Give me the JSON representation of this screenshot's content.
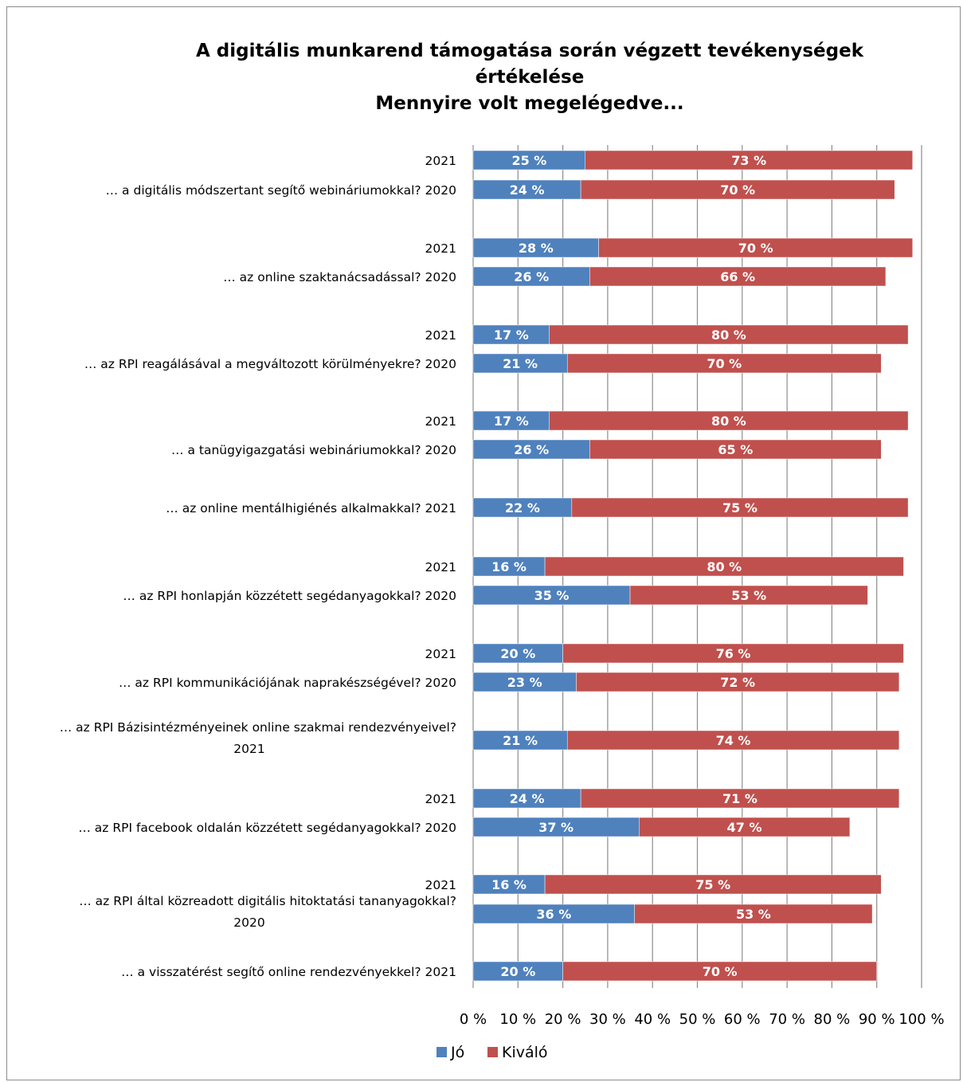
{
  "chart_data": {
    "type": "bar",
    "orientation": "horizontal",
    "stacked": true,
    "title_lines": [
      "A digitális munkarend támogatása során végzett tevékenységek",
      "értékelése",
      "Mennyire volt megelégedve..."
    ],
    "xlim": [
      0,
      100
    ],
    "x_ticks": [
      "0 %",
      "10 %",
      "20 %",
      "30 %",
      "40 %",
      "50 %",
      "60 %",
      "70 %",
      "80 %",
      "90 %",
      "100 %"
    ],
    "grid": true,
    "legend_position": "bottom",
    "series": [
      {
        "name": "Jó",
        "color": "#4f81bd"
      },
      {
        "name": "Kiváló",
        "color": "#c0504d"
      }
    ],
    "bars": [
      {
        "label": [
          "2021"
        ],
        "values": [
          25,
          73
        ],
        "value_labels": [
          "25 %",
          "73 %"
        ]
      },
      {
        "label": [
          "… a digitális módszertant segítő webináriumokkal? 2020"
        ],
        "values": [
          24,
          70
        ],
        "value_labels": [
          "24 %",
          "70 %"
        ]
      },
      {
        "label": [
          "2021"
        ],
        "values": [
          28,
          70
        ],
        "value_labels": [
          "28 %",
          "70 %"
        ]
      },
      {
        "label": [
          "… az online szaktanácsadással? 2020"
        ],
        "values": [
          26,
          66
        ],
        "value_labels": [
          "26 %",
          "66 %"
        ]
      },
      {
        "label": [
          "2021"
        ],
        "values": [
          17,
          80
        ],
        "value_labels": [
          "17 %",
          "80 %"
        ]
      },
      {
        "label": [
          "… az RPI reagálásával a megváltozott körülményekre? 2020"
        ],
        "values": [
          21,
          70
        ],
        "value_labels": [
          "21 %",
          "70 %"
        ]
      },
      {
        "label": [
          "2021"
        ],
        "values": [
          17,
          80
        ],
        "value_labels": [
          "17 %",
          "80 %"
        ]
      },
      {
        "label": [
          "… a tanügyigazgatási webináriumokkal? 2020"
        ],
        "values": [
          26,
          65
        ],
        "value_labels": [
          "26 %",
          "65 %"
        ]
      },
      {
        "label": [
          "… az online mentálhigiénés alkalmakkal? 2021"
        ],
        "values": [
          22,
          75
        ],
        "value_labels": [
          "22 %",
          "75 %"
        ]
      },
      {
        "label": [
          "2021"
        ],
        "values": [
          16,
          80
        ],
        "value_labels": [
          "16 %",
          "80 %"
        ]
      },
      {
        "label": [
          "… az RPI honlapján közzétett segédanyagokkal? 2020"
        ],
        "values": [
          35,
          53
        ],
        "value_labels": [
          "35 %",
          "53 %"
        ]
      },
      {
        "label": [
          "2021"
        ],
        "values": [
          20,
          76
        ],
        "value_labels": [
          "20 %",
          "76 %"
        ]
      },
      {
        "label": [
          "… az RPI kommunikációjának naprakészségével? 2020"
        ],
        "values": [
          23,
          72
        ],
        "value_labels": [
          "23 %",
          "72 %"
        ]
      },
      {
        "label": [
          "… az RPI Bázisintézményeinek online szakmai rendezvényeivel?",
          "2021"
        ],
        "values": [
          21,
          74
        ],
        "value_labels": [
          "21 %",
          "74 %"
        ]
      },
      {
        "label": [
          "2021"
        ],
        "values": [
          24,
          71
        ],
        "value_labels": [
          "24 %",
          "71 %"
        ]
      },
      {
        "label": [
          "… az RPI facebook oldalán közzétett segédanyagokkal? 2020"
        ],
        "values": [
          37,
          47
        ],
        "value_labels": [
          "37 %",
          "47 %"
        ]
      },
      {
        "label": [
          "2021"
        ],
        "values": [
          16,
          75
        ],
        "value_labels": [
          "16 %",
          "75 %"
        ]
      },
      {
        "label": [
          "… az RPI által közreadott digitális hitoktatási tananyagokkal?",
          "2020"
        ],
        "values": [
          36,
          53
        ],
        "value_labels": [
          "36 %",
          "53 %"
        ]
      },
      {
        "label": [
          "… a visszatérést segítő online rendezvényekkel? 2021"
        ],
        "values": [
          20,
          70
        ],
        "value_labels": [
          "20 %",
          "70 %"
        ]
      }
    ]
  }
}
